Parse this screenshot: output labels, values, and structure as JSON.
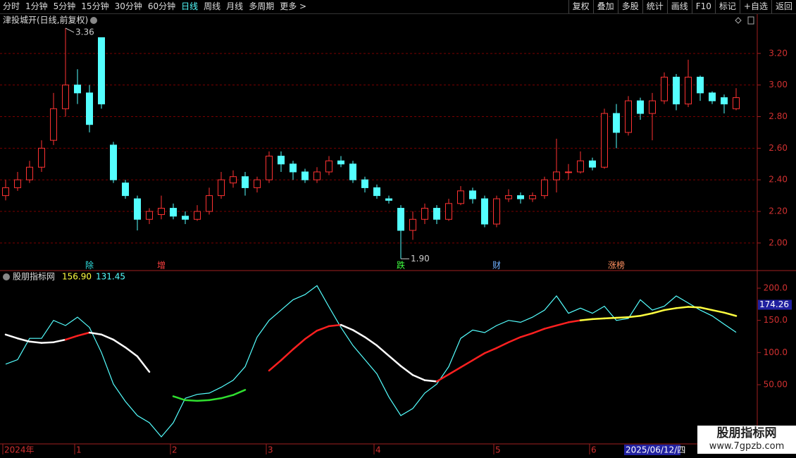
{
  "toolbar": {
    "periods": [
      "分时",
      "1分钟",
      "5分钟",
      "15分钟",
      "30分钟",
      "60分钟",
      "日线",
      "周线",
      "月线",
      "多周期",
      "更多 >"
    ],
    "active": "日线",
    "actions": [
      "复权",
      "叠加",
      "多股",
      "统计",
      "画线",
      "F10",
      "标记",
      "+自选",
      "返回"
    ]
  },
  "chart_data": [
    {
      "type": "candlestick",
      "title": "津投城开(日线,前复权)",
      "up_color": "#ff3232",
      "down_color": "#54ffff",
      "ylim": [
        1.83,
        3.44
      ],
      "yticks": [
        {
          "value": 2,
          "label": "2.00"
        },
        {
          "value": 2.2,
          "label": "2.20"
        },
        {
          "value": 2.4,
          "label": "2.40"
        },
        {
          "value": 2.6,
          "label": "2.60"
        },
        {
          "value": 2.8,
          "label": "2.80"
        },
        {
          "value": 3,
          "label": "3.00"
        },
        {
          "value": 3.2,
          "label": "3.20"
        }
      ],
      "grid": true,
      "open": [
        2.3,
        2.35,
        2.4,
        2.48,
        2.65,
        2.85,
        3.0,
        2.95,
        3.3,
        2.62,
        2.38,
        2.28,
        2.15,
        2.18,
        2.22,
        2.17,
        2.15,
        2.2,
        2.3,
        2.38,
        2.42,
        2.35,
        2.4,
        2.55,
        2.5,
        2.45,
        2.4,
        2.45,
        2.52,
        2.5,
        2.4,
        2.35,
        2.28,
        2.22,
        2.08,
        2.15,
        2.22,
        2.15,
        2.25,
        2.33,
        2.28,
        2.12,
        2.28,
        2.3,
        2.28,
        2.3,
        2.4,
        2.45,
        2.45,
        2.52,
        2.48,
        2.82,
        2.7,
        2.9,
        2.82,
        2.9,
        3.05,
        2.88,
        3.05,
        2.95,
        2.92,
        2.85
      ],
      "high": [
        2.4,
        2.45,
        2.52,
        2.65,
        2.95,
        3.36,
        3.1,
        3.0,
        3.3,
        2.64,
        2.4,
        2.3,
        2.22,
        2.3,
        2.25,
        2.2,
        2.24,
        2.35,
        2.45,
        2.46,
        2.45,
        2.42,
        2.58,
        2.58,
        2.52,
        2.47,
        2.48,
        2.55,
        2.55,
        2.52,
        2.42,
        2.37,
        2.3,
        2.24,
        2.2,
        2.25,
        2.24,
        2.28,
        2.36,
        2.35,
        2.3,
        2.3,
        2.34,
        2.32,
        2.32,
        2.42,
        2.66,
        2.5,
        2.58,
        2.54,
        2.85,
        2.88,
        2.93,
        2.92,
        2.95,
        3.08,
        3.07,
        3.16,
        3.06,
        2.96,
        2.94,
        2.98
      ],
      "low": [
        2.27,
        2.33,
        2.38,
        2.45,
        2.62,
        2.8,
        2.88,
        2.7,
        2.85,
        2.38,
        2.28,
        2.08,
        2.12,
        2.15,
        2.15,
        2.12,
        2.14,
        2.18,
        2.28,
        2.35,
        2.3,
        2.32,
        2.38,
        2.45,
        2.4,
        2.38,
        2.38,
        2.43,
        2.48,
        2.38,
        2.32,
        2.28,
        2.25,
        1.9,
        2.02,
        2.12,
        2.12,
        2.14,
        2.24,
        2.25,
        2.1,
        2.1,
        2.26,
        2.25,
        2.26,
        2.28,
        2.32,
        2.4,
        2.44,
        2.46,
        2.47,
        2.6,
        2.68,
        2.78,
        2.65,
        2.88,
        2.84,
        2.86,
        2.9,
        2.88,
        2.82,
        2.84
      ],
      "close": [
        2.35,
        2.4,
        2.48,
        2.6,
        2.85,
        3.0,
        2.95,
        2.75,
        2.88,
        2.4,
        2.3,
        2.15,
        2.2,
        2.22,
        2.17,
        2.15,
        2.2,
        2.3,
        2.4,
        2.42,
        2.35,
        2.4,
        2.55,
        2.5,
        2.45,
        2.4,
        2.45,
        2.52,
        2.5,
        2.4,
        2.35,
        2.3,
        2.27,
        2.08,
        2.15,
        2.22,
        2.15,
        2.25,
        2.33,
        2.28,
        2.12,
        2.28,
        2.3,
        2.28,
        2.3,
        2.4,
        2.45,
        2.45,
        2.52,
        2.48,
        2.82,
        2.7,
        2.9,
        2.82,
        2.9,
        3.05,
        2.88,
        3.05,
        2.95,
        2.9,
        2.88,
        2.92
      ],
      "high_label": {
        "value": 3.36,
        "label": "3.36"
      },
      "low_label": {
        "value": 1.9,
        "label": "1.90"
      },
      "events": [
        null,
        null,
        null,
        null,
        null,
        null,
        null,
        "除",
        null,
        null,
        null,
        null,
        null,
        "增",
        null,
        null,
        null,
        null,
        null,
        null,
        null,
        null,
        null,
        null,
        null,
        null,
        null,
        null,
        null,
        null,
        null,
        null,
        null,
        "跌",
        null,
        null,
        null,
        null,
        null,
        null,
        null,
        "财",
        null,
        null,
        null,
        null,
        null,
        null,
        null,
        null,
        null,
        "涨榜",
        null,
        null,
        null,
        null,
        null,
        null,
        null,
        null,
        null,
        null
      ],
      "event_colors": [
        null,
        null,
        null,
        null,
        null,
        null,
        null,
        "#30e0e0",
        null,
        null,
        null,
        null,
        null,
        "#ff4040",
        null,
        null,
        null,
        null,
        null,
        null,
        null,
        null,
        null,
        null,
        null,
        null,
        null,
        null,
        null,
        null,
        null,
        null,
        null,
        "#40ff40",
        null,
        null,
        null,
        null,
        null,
        null,
        null,
        "#70b0ff",
        null,
        null,
        null,
        null,
        null,
        null,
        null,
        null,
        null,
        "#ff9060",
        null,
        null,
        null,
        null,
        null,
        null,
        null,
        null,
        null,
        null
      ],
      "x_labels": [
        "2024年",
        null,
        null,
        null,
        null,
        null,
        "1",
        null,
        null,
        null,
        null,
        null,
        null,
        null,
        "2",
        null,
        null,
        null,
        null,
        null,
        null,
        null,
        "3",
        null,
        null,
        null,
        null,
        null,
        null,
        null,
        null,
        "4",
        null,
        null,
        null,
        null,
        null,
        null,
        null,
        null,
        null,
        "5",
        null,
        null,
        null,
        null,
        null,
        null,
        null,
        "6",
        null,
        null,
        null,
        null,
        null,
        null,
        null,
        null,
        null,
        null,
        null,
        null
      ],
      "cursor_label": "2025/06/12/四"
    },
    {
      "type": "line",
      "title": "股朋指标网",
      "ylim": [
        -42,
        223
      ],
      "yticks": [
        {
          "value": 50,
          "label": "50.00"
        },
        {
          "value": 100,
          "label": "100.0"
        },
        {
          "value": 150,
          "label": "150.0"
        },
        {
          "value": 200,
          "label": "200.0"
        }
      ],
      "readouts": [
        {
          "value": 156.9,
          "label": "156.90",
          "color": "#ffff40"
        },
        {
          "value": 131.45,
          "label": "131.45",
          "color": "#54ffff"
        }
      ],
      "cursor_value": {
        "value": 174.26,
        "label": "174.26"
      },
      "series": [
        {
          "color": "#54ffff",
          "values": [
            82,
            89,
            122,
            122,
            150,
            142,
            155,
            139,
            100,
            51,
            24,
            2,
            -9,
            -31,
            -9,
            29,
            35,
            37,
            46,
            57,
            78,
            124,
            150,
            166,
            182,
            190,
            204,
            171,
            139,
            111,
            89,
            67,
            31,
            2,
            13,
            37,
            51,
            78,
            122,
            135,
            131,
            142,
            150,
            147,
            155,
            166,
            188,
            161,
            169,
            161,
            172,
            150,
            153,
            182,
            166,
            172,
            188,
            177,
            166,
            157,
            144,
            131.45
          ]
        },
        {
          "values": [
            128,
            122,
            117,
            115,
            116,
            120,
            126,
            131,
            128,
            120,
            108,
            94,
            70,
            null,
            32,
            26,
            25,
            26,
            29,
            34,
            42,
            null,
            72,
            88,
            105,
            121,
            134,
            141,
            143,
            135,
            124,
            111,
            95,
            79,
            65,
            57,
            55,
            66,
            77,
            88,
            99,
            107,
            116,
            124,
            130,
            137,
            142,
            147,
            150,
            152,
            153,
            154,
            155,
            157,
            161,
            166,
            169,
            171,
            170,
            166,
            162,
            156.9
          ],
          "colors": [
            "#ffffff",
            "#ffffff",
            "#ffffff",
            "#ffffff",
            "#ffffff",
            "#ffffff",
            "#ff2020",
            "#ff2020",
            "#ffffff",
            "#ffffff",
            "#ffffff",
            "#ffffff",
            "#ffffff",
            null,
            "#30e030",
            "#30e030",
            "#30e030",
            "#30e030",
            "#30e030",
            "#30e030",
            "#30e030",
            null,
            "#ff2020",
            "#ff2020",
            "#ff2020",
            "#ff2020",
            "#ff2020",
            "#ff2020",
            "#ff2020",
            "#ffffff",
            "#ffffff",
            "#ffffff",
            "#ffffff",
            "#ffffff",
            "#ffffff",
            "#ffffff",
            "#ffffff",
            "#ff2020",
            "#ff2020",
            "#ff2020",
            "#ff2020",
            "#ff2020",
            "#ff2020",
            "#ff2020",
            "#ff2020",
            "#ff2020",
            "#ff2020",
            "#ff2020",
            "#ff2020",
            "#ffff40",
            "#ffff40",
            "#ffff40",
            "#ffff40",
            "#ffff40",
            "#ffff40",
            "#ffff40",
            "#ffff40",
            "#ffff40",
            "#ffff40",
            "#ffff40",
            "#ffff40",
            "#ffff40"
          ]
        }
      ]
    }
  ],
  "watermark": {
    "name": "股朋指标网",
    "url": "www.7gpzb.com"
  }
}
